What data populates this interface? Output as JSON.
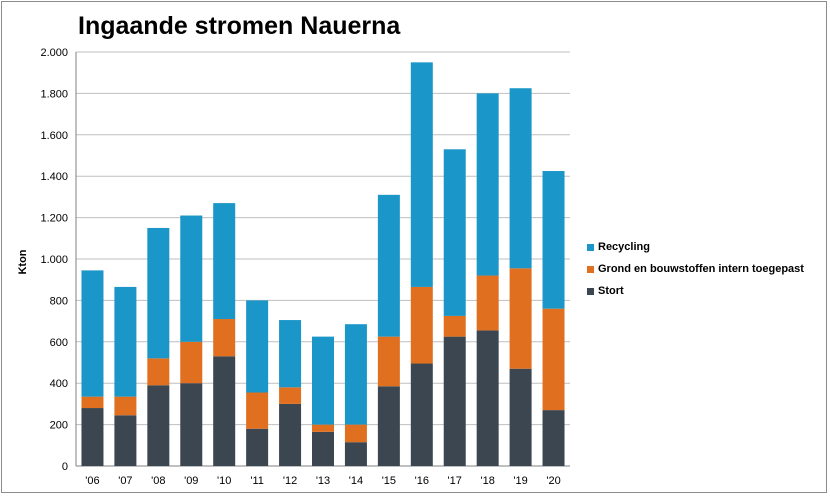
{
  "chart_data": {
    "type": "bar",
    "stacked": true,
    "title": "Ingaande stromen Nauerna",
    "xlabel": "",
    "ylabel": "Kton",
    "ylim": [
      0,
      2000
    ],
    "yticks": [
      0,
      200,
      400,
      600,
      800,
      1000,
      1200,
      1400,
      1600,
      1800,
      2000
    ],
    "ytick_labels": [
      "0",
      "200",
      "400",
      "600",
      "800",
      "1.000",
      "1.200",
      "1.400",
      "1.600",
      "1.800",
      "2.000"
    ],
    "categories": [
      "'06",
      "'07",
      "'08",
      "'09",
      "'10",
      "'11",
      "'12",
      "'13",
      "'14",
      "'15",
      "'16",
      "'17",
      "'18",
      "'19",
      "'20"
    ],
    "grid": true,
    "legend_position": "right",
    "series": [
      {
        "name": "Stort",
        "color": "#3b4650",
        "values": [
          280,
          245,
          390,
          400,
          530,
          180,
          300,
          165,
          115,
          385,
          495,
          625,
          655,
          470,
          270
        ]
      },
      {
        "name": "Grond en bouwstoffen intern toegepast",
        "color": "#e07020",
        "values": [
          55,
          90,
          130,
          200,
          180,
          175,
          80,
          35,
          85,
          240,
          370,
          100,
          265,
          485,
          490
        ]
      },
      {
        "name": "Recycling",
        "color": "#1a96c8",
        "values": [
          610,
          530,
          630,
          610,
          560,
          445,
          325,
          425,
          485,
          685,
          1085,
          805,
          880,
          870,
          665
        ]
      }
    ]
  }
}
